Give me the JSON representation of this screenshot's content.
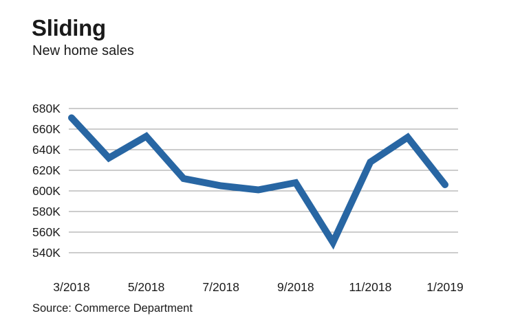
{
  "header": {
    "title": "Sliding",
    "subtitle": "New home sales"
  },
  "footer": {
    "source": "Source: Commerce Department"
  },
  "colors": {
    "line": "#2866a3",
    "grid": "#9a9a9a",
    "text": "#1a1a1a"
  },
  "chart_data": {
    "type": "line",
    "title": "Sliding",
    "subtitle": "New home sales",
    "xlabel": "",
    "ylabel": "",
    "x": [
      "3/2018",
      "4/2018",
      "5/2018",
      "6/2018",
      "7/2018",
      "8/2018",
      "9/2018",
      "10/2018",
      "11/2018",
      "12/2018",
      "1/2019"
    ],
    "x_tick_labels": [
      "3/2018",
      "5/2018",
      "7/2018",
      "9/2018",
      "11/2018",
      "1/2019"
    ],
    "y_tick_labels": [
      "680K",
      "660K",
      "640K",
      "620K",
      "600K",
      "580K",
      "560K",
      "540K"
    ],
    "y_ticks": [
      680,
      660,
      640,
      620,
      600,
      580,
      560,
      540
    ],
    "ylim": [
      540,
      680
    ],
    "y_unit": "K",
    "grid": true,
    "legend": "none",
    "series": [
      {
        "values": [
          671,
          632,
          653,
          612,
          605,
          601,
          608,
          550,
          628,
          652,
          606
        ]
      }
    ]
  }
}
